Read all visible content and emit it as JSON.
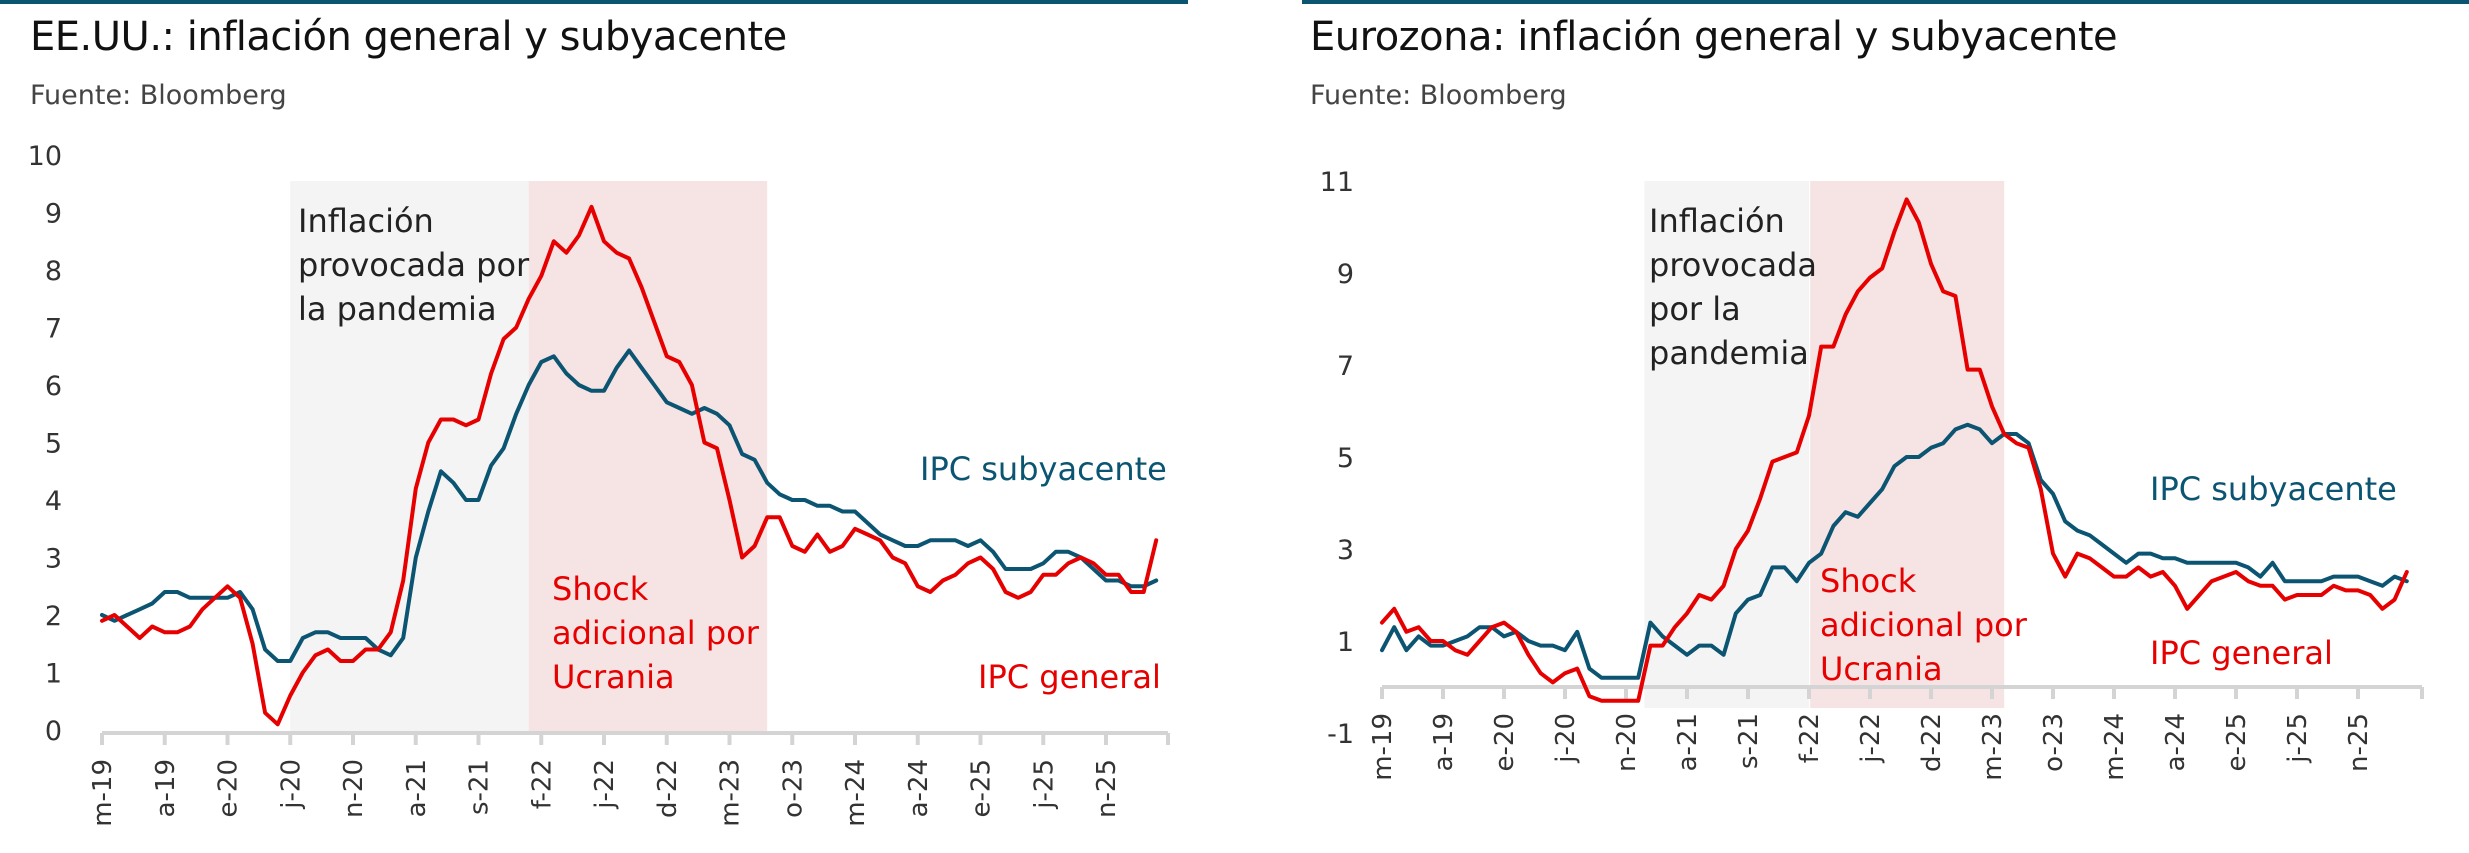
{
  "colors": {
    "accent_bar": "#0b5472",
    "core": "#0b5472",
    "headline": "#e60000",
    "pandemic_band": "#f4f4f4",
    "ukraine_band": "#f6e3e3",
    "axis": "#d4d4d4"
  },
  "chart_data": [
    {
      "type": "line",
      "title": "EE.UU.: inflación general y subyacente",
      "subtitle": "Fuente: Bloomberg",
      "xlabel": "",
      "ylabel": "",
      "ylim": [
        0,
        10
      ],
      "yticks": [
        0,
        1,
        2,
        3,
        4,
        5,
        6,
        7,
        8,
        9,
        10
      ],
      "grid": false,
      "legend_position": "inline labels",
      "x_start": "2019-03",
      "frequency": "monthly",
      "x_tick_labels": [
        "m-19",
        "a-19",
        "e-20",
        "j-20",
        "n-20",
        "a-21",
        "s-21",
        "f-22",
        "j-22",
        "d-22",
        "m-23",
        "o-23",
        "m-24",
        "a-24",
        "e-25",
        "j-25",
        "n-25"
      ],
      "x_tick_step_months": 5,
      "bands": [
        {
          "label": "Inflación provocada por la pandemia",
          "lines": [
            "Inflación",
            "provocada por",
            "la pandemia"
          ],
          "from_month": 15,
          "to_month": 34,
          "color_key": "pandemic_band"
        },
        {
          "label": "Shock adicional por Ucrania",
          "lines": [
            "Shock",
            "adicional por",
            "Ucrania"
          ],
          "from_month": 34,
          "to_month": 53,
          "color_key": "ukraine_band"
        }
      ],
      "series": [
        {
          "name": "IPC subyacente",
          "color_key": "core",
          "values": [
            2.0,
            1.9,
            2.0,
            2.1,
            2.2,
            2.4,
            2.4,
            2.3,
            2.3,
            2.3,
            2.3,
            2.4,
            2.1,
            1.4,
            1.2,
            1.2,
            1.6,
            1.7,
            1.7,
            1.6,
            1.6,
            1.6,
            1.4,
            1.3,
            1.6,
            3.0,
            3.8,
            4.5,
            4.3,
            4.0,
            4.0,
            4.6,
            4.9,
            5.5,
            6.0,
            6.4,
            6.5,
            6.2,
            6.0,
            5.9,
            5.9,
            6.3,
            6.6,
            6.3,
            6.0,
            5.7,
            5.6,
            5.5,
            5.6,
            5.5,
            5.3,
            4.8,
            4.7,
            4.3,
            4.1,
            4.0,
            4.0,
            3.9,
            3.9,
            3.8,
            3.8,
            3.6,
            3.4,
            3.3,
            3.2,
            3.2,
            3.3,
            3.3,
            3.3,
            3.2,
            3.3,
            3.1,
            2.8,
            2.8,
            2.8,
            2.9,
            3.1,
            3.1,
            3.0,
            2.8,
            2.6,
            2.6,
            2.5,
            2.5,
            2.6
          ]
        },
        {
          "name": "IPC general",
          "color_key": "headline",
          "values": [
            1.9,
            2.0,
            1.8,
            1.6,
            1.8,
            1.7,
            1.7,
            1.8,
            2.1,
            2.3,
            2.5,
            2.3,
            1.5,
            0.3,
            0.1,
            0.6,
            1.0,
            1.3,
            1.4,
            1.2,
            1.2,
            1.4,
            1.4,
            1.7,
            2.6,
            4.2,
            5.0,
            5.4,
            5.4,
            5.3,
            5.4,
            6.2,
            6.8,
            7.0,
            7.5,
            7.9,
            8.5,
            8.3,
            8.6,
            9.1,
            8.5,
            8.3,
            8.2,
            7.7,
            7.1,
            6.5,
            6.4,
            6.0,
            5.0,
            4.9,
            4.0,
            3.0,
            3.2,
            3.7,
            3.7,
            3.2,
            3.1,
            3.4,
            3.1,
            3.2,
            3.5,
            3.4,
            3.3,
            3.0,
            2.9,
            2.5,
            2.4,
            2.6,
            2.7,
            2.9,
            3.0,
            2.8,
            2.4,
            2.3,
            2.4,
            2.7,
            2.7,
            2.9,
            3.0,
            2.9,
            2.7,
            2.7,
            2.4,
            2.4,
            3.3
          ]
        }
      ],
      "annotations": [
        {
          "text": "IPC subyacente",
          "color_key": "core"
        },
        {
          "text": "IPC general",
          "color_key": "headline"
        }
      ]
    },
    {
      "type": "line",
      "title": "Eurozona: inflación general y subyacente",
      "subtitle": "Fuente: Bloomberg",
      "xlabel": "",
      "ylabel": "",
      "ylim": [
        -1,
        11
      ],
      "yticks": [
        -1,
        1,
        3,
        5,
        7,
        9,
        11
      ],
      "grid": false,
      "legend_position": "inline labels",
      "x_start": "2019-03",
      "frequency": "monthly",
      "x_tick_labels": [
        "m-19",
        "a-19",
        "e-20",
        "j-20",
        "n-20",
        "a-21",
        "s-21",
        "f-22",
        "j-22",
        "d-22",
        "m-23",
        "o-23",
        "m-24",
        "a-24",
        "e-25",
        "j-25",
        "n-25"
      ],
      "x_tick_step_months": 5,
      "bands": [
        {
          "label": "Inflación provocada por la pandemia",
          "lines": [
            "Inflación",
            "provocada",
            "por la",
            "pandemia"
          ],
          "from_month": 21.5,
          "to_month": 35,
          "color_key": "pandemic_band"
        },
        {
          "label": "Shock adicional por Ucrania",
          "lines": [
            "Shock",
            "adicional por",
            "Ucrania"
          ],
          "from_month": 35.1,
          "to_month": 51,
          "color_key": "ukraine_band"
        }
      ],
      "series": [
        {
          "name": "IPC subyacente",
          "color_key": "core",
          "values": [
            0.8,
            1.3,
            0.8,
            1.1,
            0.9,
            0.9,
            1.0,
            1.1,
            1.3,
            1.3,
            1.1,
            1.2,
            1.0,
            0.9,
            0.9,
            0.8,
            1.2,
            0.4,
            0.2,
            0.2,
            0.2,
            0.2,
            1.4,
            1.1,
            0.9,
            0.7,
            0.9,
            0.9,
            0.7,
            1.6,
            1.9,
            2.0,
            2.6,
            2.6,
            2.3,
            2.7,
            2.9,
            3.5,
            3.8,
            3.7,
            4.0,
            4.3,
            4.8,
            5.0,
            5.0,
            5.2,
            5.3,
            5.6,
            5.7,
            5.6,
            5.3,
            5.5,
            5.5,
            5.3,
            4.5,
            4.2,
            3.6,
            3.4,
            3.3,
            3.1,
            2.9,
            2.7,
            2.9,
            2.9,
            2.8,
            2.8,
            2.7,
            2.7,
            2.7,
            2.7,
            2.7,
            2.6,
            2.4,
            2.7,
            2.3,
            2.3,
            2.3,
            2.3,
            2.4,
            2.4,
            2.4,
            2.3,
            2.2,
            2.4,
            2.3
          ]
        },
        {
          "name": "IPC general",
          "color_key": "headline",
          "values": [
            1.4,
            1.7,
            1.2,
            1.3,
            1.0,
            1.0,
            0.8,
            0.7,
            1.0,
            1.3,
            1.4,
            1.2,
            0.7,
            0.3,
            0.1,
            0.3,
            0.4,
            -0.2,
            -0.3,
            -0.3,
            -0.3,
            -0.3,
            0.9,
            0.9,
            1.3,
            1.6,
            2.0,
            1.9,
            2.2,
            3.0,
            3.4,
            4.1,
            4.9,
            5.0,
            5.1,
            5.9,
            7.4,
            7.4,
            8.1,
            8.6,
            8.9,
            9.1,
            9.9,
            10.6,
            10.1,
            9.2,
            8.6,
            8.5,
            6.9,
            6.9,
            6.1,
            5.5,
            5.3,
            5.2,
            4.3,
            2.9,
            2.4,
            2.9,
            2.8,
            2.6,
            2.4,
            2.4,
            2.6,
            2.4,
            2.5,
            2.2,
            1.7,
            2.0,
            2.3,
            2.4,
            2.5,
            2.3,
            2.2,
            2.2,
            1.9,
            2.0,
            2.0,
            2.0,
            2.2,
            2.1,
            2.1,
            2.0,
            1.7,
            1.9,
            2.5
          ]
        }
      ],
      "annotations": [
        {
          "text": "IPC subyacente",
          "color_key": "core"
        },
        {
          "text": "IPC general",
          "color_key": "headline"
        }
      ]
    }
  ]
}
